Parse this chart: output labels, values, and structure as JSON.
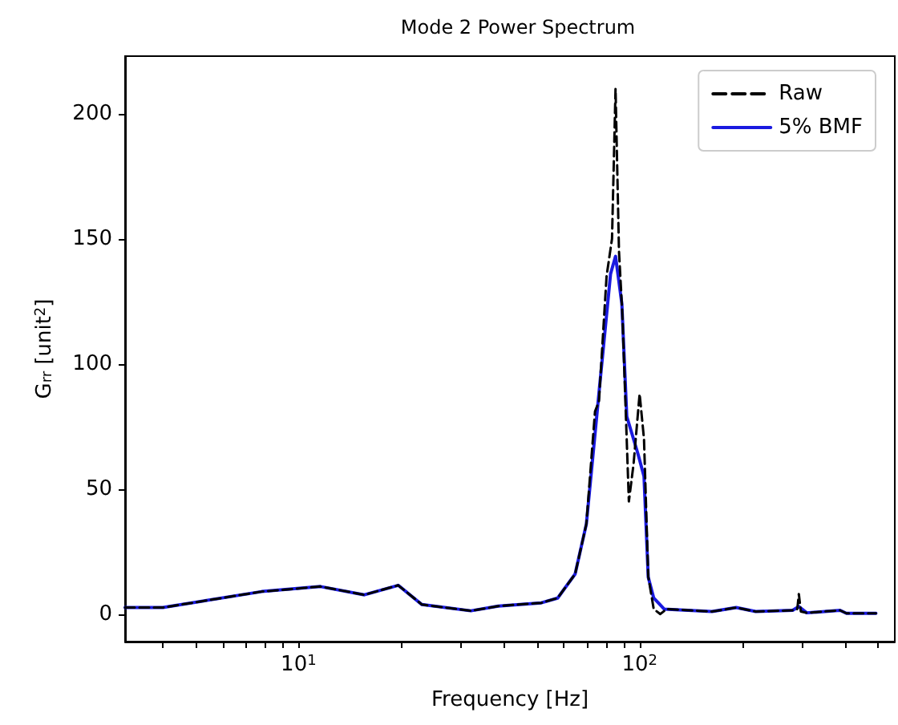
{
  "chart_data": {
    "type": "line",
    "title": "Mode 2 Power Spectrum",
    "xlabel": "Frequency [Hz]",
    "ylabel": "G$_{rr}$ [unit$^{2}$]",
    "log": "x",
    "grid": false,
    "legend": "top right",
    "marker": "none",
    "xlim": [
      3.1,
      560
    ],
    "ylim": [
      -11,
      223
    ],
    "xticks": [
      {
        "value": 4,
        "label": null
      },
      {
        "value": 5,
        "label": null
      },
      {
        "value": 6,
        "label": null
      },
      {
        "value": 7,
        "label": null
      },
      {
        "value": 8,
        "label": null
      },
      {
        "value": 9,
        "label": null
      },
      {
        "value": 10,
        "label": "10$^{1}$"
      },
      {
        "value": 20,
        "label": null
      },
      {
        "value": 30,
        "label": null
      },
      {
        "value": 40,
        "label": null
      },
      {
        "value": 50,
        "label": null
      },
      {
        "value": 60,
        "label": null
      },
      {
        "value": 70,
        "label": null
      },
      {
        "value": 80,
        "label": null
      },
      {
        "value": 90,
        "label": null
      },
      {
        "value": 100,
        "label": "10$^{2}$"
      },
      {
        "value": 200,
        "label": null
      },
      {
        "value": 300,
        "label": null
      },
      {
        "value": 400,
        "label": null
      },
      {
        "value": 500,
        "label": null
      }
    ],
    "yticks": [
      0,
      50,
      100,
      150,
      200
    ],
    "series": [
      {
        "name": "Raw",
        "color": "#000000",
        "line_style": "dashed",
        "x": [
          3.1,
          4,
          7.8,
          11.6,
          15.6,
          19.6,
          23,
          32,
          38.5,
          51.5,
          57.5,
          64.7,
          69.8,
          74,
          76,
          80,
          83,
          85,
          87,
          89,
          93,
          96,
          100,
          103,
          106,
          110,
          115,
          120,
          163,
          192,
          219,
          281,
          290,
          293,
          297,
          309,
          387,
          404,
          493
        ],
        "values": [
          2.6,
          2.6,
          9,
          11,
          7.7,
          11.5,
          3.8,
          1.3,
          3.2,
          4.5,
          6.4,
          16,
          36,
          81,
          85,
          135,
          150,
          210,
          145,
          120,
          45,
          60,
          88,
          70,
          15,
          2,
          0,
          2,
          1,
          2.6,
          1,
          1.5,
          2,
          8,
          1,
          0.5,
          1.5,
          0.3,
          0.3
        ]
      },
      {
        "name": "5% BMF",
        "color": "#1a1ae0",
        "line_style": "solid",
        "x": [
          3.1,
          4,
          7.8,
          11.6,
          15.6,
          19.6,
          23,
          32,
          38.5,
          51.5,
          57.5,
          64.7,
          69.8,
          76.2,
          82.2,
          85,
          88.7,
          91.7,
          98.9,
          103,
          106,
          110,
          118,
          163,
          192,
          219,
          281,
          293,
          309,
          387,
          404,
          493
        ],
        "values": [
          2.6,
          2.6,
          9,
          11,
          7.7,
          11.5,
          3.8,
          1.3,
          3.2,
          4.5,
          6.4,
          16,
          36,
          90,
          136,
          143,
          124,
          79,
          64,
          55,
          14.7,
          6.4,
          2,
          1,
          2.6,
          1,
          1.5,
          3,
          0.5,
          1.5,
          0.3,
          0.3
        ]
      }
    ]
  }
}
